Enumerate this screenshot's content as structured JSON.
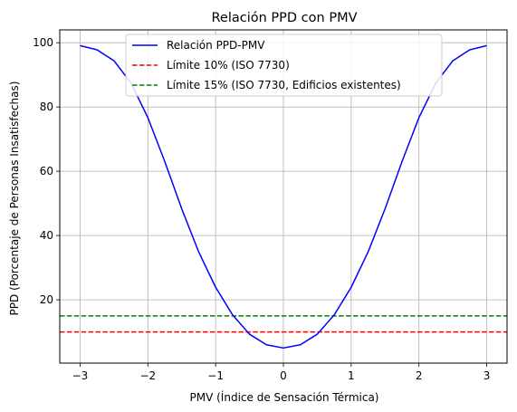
{
  "chart_data": {
    "type": "line",
    "title": "Relación PPD con PMV",
    "xlabel": "PMV (Índice de Sensación Térmica)",
    "ylabel": "PPD (Porcentaje de Personas Insatisfechas)",
    "xlim": [
      -3.3,
      3.3
    ],
    "ylim": [
      0.3,
      104.0
    ],
    "xticks": [
      -3,
      -2,
      -1,
      0,
      1,
      2,
      3
    ],
    "xtick_labels": [
      "−3",
      "−2",
      "−1",
      "0",
      "1",
      "2",
      "3"
    ],
    "yticks": [
      20,
      40,
      60,
      80,
      100
    ],
    "ytick_labels": [
      "20",
      "40",
      "60",
      "80",
      "100"
    ],
    "grid": true,
    "legend_position": "top-center",
    "series": [
      {
        "name": "Relación PPD-PMV",
        "color": "#0000ff",
        "style": "solid",
        "x": [
          -3.0,
          -2.75,
          -2.5,
          -2.25,
          -2.0,
          -1.75,
          -1.5,
          -1.25,
          -1.0,
          -0.75,
          -0.5,
          -0.25,
          0.0,
          0.25,
          0.5,
          0.75,
          1.0,
          1.25,
          1.5,
          1.75,
          2.0,
          2.25,
          2.5,
          2.75,
          3.0
        ],
        "y": [
          99.1,
          97.8,
          94.4,
          87.5,
          76.7,
          63.0,
          48.3,
          34.9,
          23.9,
          15.3,
          9.3,
          6.0,
          5.0,
          6.0,
          9.3,
          15.3,
          23.9,
          34.9,
          48.3,
          63.0,
          76.7,
          87.5,
          94.4,
          97.8,
          99.1
        ]
      },
      {
        "name": "Límite 10% (ISO 7730)",
        "color": "#ff0000",
        "style": "dashed",
        "y_constant": 10
      },
      {
        "name": "Límite 15% (ISO 7730, Edificios existentes)",
        "color": "#008000",
        "style": "dashed",
        "y_constant": 15
      }
    ]
  }
}
